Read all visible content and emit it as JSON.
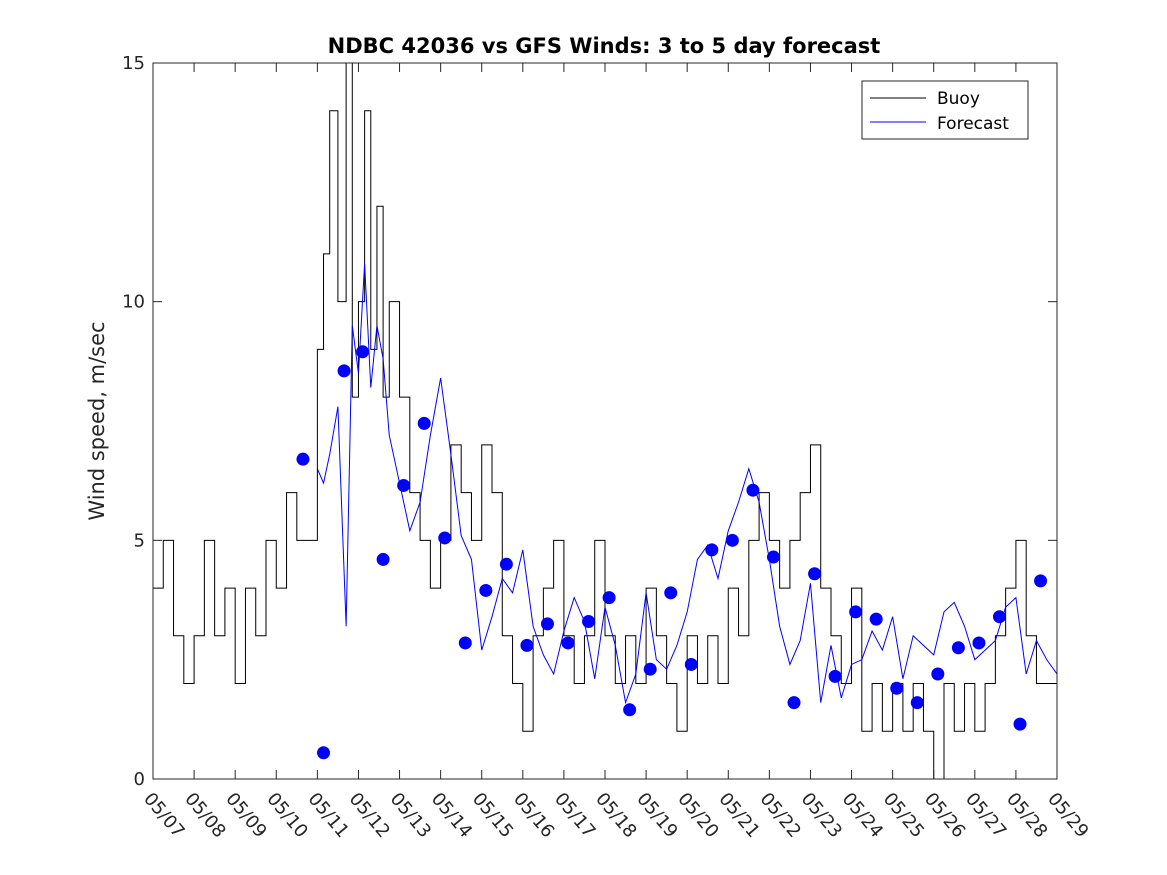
{
  "chart_data": {
    "type": "line",
    "title": "NDBC 42036 vs GFS Winds: 3 to 5 day forecast",
    "xlabel": "",
    "ylabel": "Wind speed, m/sec",
    "xlim": [
      "05/07",
      "05/29"
    ],
    "ylim": [
      0,
      15
    ],
    "x_ticks": [
      "05/07",
      "05/08",
      "05/09",
      "05/10",
      "05/11",
      "05/12",
      "05/13",
      "05/14",
      "05/15",
      "05/16",
      "05/17",
      "05/18",
      "05/19",
      "05/20",
      "05/21",
      "05/22",
      "05/23",
      "05/24",
      "05/25",
      "05/26",
      "05/27",
      "05/28",
      "05/29"
    ],
    "y_ticks": [
      0,
      5,
      10,
      15
    ],
    "grid": false,
    "legend_position": "top-right",
    "colors": {
      "buoy": "#000000",
      "forecast": "#0000ff",
      "axis": "#262626"
    },
    "legend": [
      {
        "label": "Buoy",
        "color": "#000000"
      },
      {
        "label": "Forecast",
        "color": "#0000ff"
      }
    ],
    "series": [
      {
        "name": "Buoy",
        "style": "step",
        "x_days": [
          0,
          0.25,
          0.5,
          0.75,
          1,
          1.25,
          1.5,
          1.75,
          2,
          2.25,
          2.5,
          2.75,
          3,
          3.25,
          3.5,
          3.75,
          4,
          4.15,
          4.3,
          4.5,
          4.7,
          4.85,
          5,
          5.15,
          5.3,
          5.45,
          5.6,
          5.75,
          6,
          6.25,
          6.5,
          6.75,
          7,
          7.25,
          7.5,
          7.75,
          8,
          8.25,
          8.5,
          8.75,
          9,
          9.25,
          9.5,
          9.75,
          10,
          10.25,
          10.5,
          10.75,
          11,
          11.25,
          11.5,
          11.75,
          12,
          12.25,
          12.5,
          12.75,
          13,
          13.25,
          13.5,
          13.75,
          14,
          14.25,
          14.5,
          14.75,
          15,
          15.25,
          15.5,
          15.75,
          16,
          16.25,
          16.5,
          16.75,
          17,
          17.25,
          17.5,
          17.75,
          18,
          18.25,
          18.5,
          18.75,
          19,
          19.25,
          19.5,
          19.75,
          20,
          20.25,
          20.5,
          20.75,
          21,
          21.25,
          21.5,
          21.75,
          22
        ],
        "values": [
          4,
          5,
          3,
          2,
          3,
          5,
          3,
          4,
          2,
          4,
          3,
          5,
          4,
          6,
          5,
          5,
          9,
          11,
          14,
          10,
          15,
          8,
          10,
          14,
          9,
          12,
          8,
          10,
          8,
          6,
          5,
          4,
          5,
          7,
          6,
          5,
          7,
          6,
          3,
          2,
          1,
          3,
          4,
          5,
          3,
          2,
          3,
          5,
          3,
          2,
          3,
          2,
          4,
          3,
          2,
          1,
          3,
          2,
          3,
          2,
          4,
          3,
          5,
          6,
          5,
          4,
          5,
          6,
          7,
          4,
          3,
          2,
          4,
          1,
          2,
          1,
          2,
          1,
          2,
          1,
          0,
          2,
          1,
          2,
          1,
          2,
          3,
          4,
          5,
          3,
          2,
          2,
          2
        ]
      },
      {
        "name": "Forecast",
        "style": "multi-line",
        "x_days": [
          0,
          0.25,
          0.5,
          0.75,
          1,
          1.25,
          1.5,
          1.75,
          2,
          2.25,
          2.5,
          2.75,
          3,
          3.25,
          3.5,
          3.75,
          4,
          4.15,
          4.3,
          4.5,
          4.7,
          4.85,
          5,
          5.15,
          5.3,
          5.45,
          5.6,
          5.75,
          6,
          6.25,
          6.5,
          6.75,
          7,
          7.25,
          7.5,
          7.75,
          8,
          8.25,
          8.5,
          8.75,
          9,
          9.25,
          9.5,
          9.75,
          10,
          10.25,
          10.5,
          10.75,
          11,
          11.25,
          11.5,
          11.75,
          12,
          12.25,
          12.5,
          12.75,
          13,
          13.25,
          13.5,
          13.75,
          14,
          14.25,
          14.5,
          14.75,
          15,
          15.25,
          15.5,
          15.75,
          16,
          16.25,
          16.5,
          16.75,
          17,
          17.25,
          17.5,
          17.75,
          18,
          18.25,
          18.5,
          18.75,
          19,
          19.25,
          19.5,
          19.75,
          20,
          20.25,
          20.5,
          20.75,
          21,
          21.25,
          21.5,
          21.75,
          22
        ],
        "values": [
          null,
          null,
          null,
          null,
          null,
          null,
          null,
          null,
          null,
          null,
          null,
          null,
          null,
          null,
          null,
          null,
          6.5,
          6.2,
          6.8,
          7.8,
          3.2,
          9.5,
          8.5,
          10.8,
          8.2,
          9.5,
          8.8,
          7.2,
          6.2,
          5.2,
          5.8,
          7.2,
          8.4,
          6.8,
          5.1,
          4.6,
          2.7,
          3.4,
          4.2,
          3.9,
          4.8,
          3.2,
          2.6,
          2.2,
          3.1,
          3.8,
          3.3,
          2.1,
          3.6,
          2.8,
          1.6,
          2.2,
          3.9,
          2.5,
          2.3,
          2.8,
          3.5,
          4.6,
          4.9,
          4.2,
          5.2,
          5.8,
          6.5,
          5.8,
          4.6,
          3.2,
          2.4,
          2.9,
          4.1,
          1.6,
          2.8,
          1.7,
          2.4,
          2.5,
          3.1,
          2.7,
          3.4,
          2.1,
          3.0,
          2.8,
          2.6,
          3.5,
          3.7,
          3.2,
          2.5,
          2.7,
          2.9,
          3.6,
          3.8,
          2.2,
          2.9,
          2.5,
          2.2
        ]
      },
      {
        "name": "Forecast",
        "style": "markers",
        "x_days": [
          3.65,
          4.15,
          4.65,
          5.1,
          5.6,
          6.1,
          6.6,
          7.1,
          7.6,
          8.1,
          8.6,
          9.1,
          9.6,
          10.1,
          10.6,
          11.1,
          11.6,
          12.1,
          12.6,
          13.1,
          13.6,
          14.1,
          14.6,
          15.1,
          15.6,
          16.1,
          16.6,
          17.1,
          17.6,
          18.1,
          18.6,
          19.1,
          19.6,
          20.1,
          20.6,
          21.1,
          21.6
        ],
        "values": [
          6.7,
          0.55,
          8.55,
          8.95,
          4.6,
          6.15,
          7.45,
          5.05,
          2.85,
          3.95,
          4.5,
          2.8,
          3.25,
          2.85,
          3.3,
          3.8,
          1.45,
          2.3,
          3.9,
          2.4,
          4.8,
          5.0,
          6.05,
          4.65,
          1.6,
          4.3,
          2.15,
          3.5,
          3.35,
          1.9,
          1.6,
          2.2,
          2.75,
          2.85,
          3.4,
          1.15,
          4.15
        ]
      }
    ]
  }
}
